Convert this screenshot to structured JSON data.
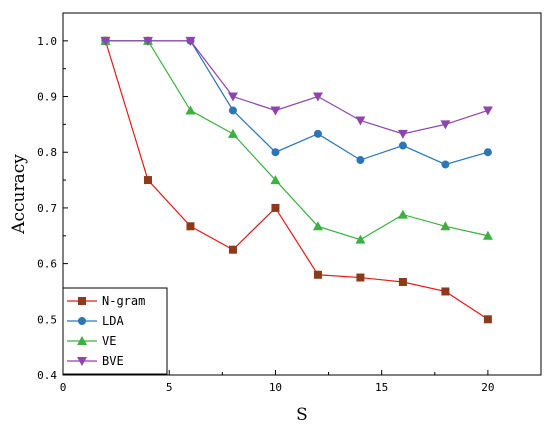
{
  "chart_data": {
    "type": "line",
    "xlabel": "S",
    "ylabel": "Accuracy",
    "xlim": [
      0,
      22.5
    ],
    "ylim": [
      0.4,
      1.05
    ],
    "x_ticks": [
      0,
      5,
      10,
      15,
      20
    ],
    "y_ticks": [
      0.4,
      0.5,
      0.6,
      0.7,
      0.8,
      0.9,
      1.0
    ],
    "x_tick_labels": [
      "0",
      "5",
      "10",
      "15",
      "20"
    ],
    "y_tick_labels": [
      "0.4",
      "0.5",
      "0.6",
      "0.7",
      "0.8",
      "0.9",
      "1.0"
    ],
    "grid": false,
    "legend_position": "bottom-left",
    "series": [
      {
        "name": "N-gram",
        "color": "#8B3A1A",
        "line_color": "#E41A1C",
        "marker": "square",
        "x": [
          2,
          4,
          6,
          8,
          10,
          12,
          14,
          16,
          18,
          20
        ],
        "y": [
          1.0,
          0.75,
          0.667,
          0.625,
          0.7,
          0.58,
          0.575,
          0.567,
          0.55,
          0.5
        ]
      },
      {
        "name": "LDA",
        "color": "#2E75B6",
        "line_color": "#2E75B6",
        "marker": "circle",
        "x": [
          2,
          4,
          6,
          8,
          10,
          12,
          14,
          16,
          18,
          20
        ],
        "y": [
          1.0,
          1.0,
          1.0,
          0.875,
          0.8,
          0.833,
          0.786,
          0.812,
          0.778,
          0.8
        ]
      },
      {
        "name": "VE",
        "color": "#3CB043",
        "line_color": "#3CB043",
        "marker": "triangle-up",
        "x": [
          2,
          4,
          6,
          8,
          10,
          12,
          14,
          16,
          18,
          20
        ],
        "y": [
          1.0,
          1.0,
          0.875,
          0.833,
          0.75,
          0.667,
          0.643,
          0.688,
          0.667,
          0.65
        ]
      },
      {
        "name": "BVE",
        "color": "#8E44AD",
        "line_color": "#8E44AD",
        "marker": "triangle-down",
        "x": [
          2,
          4,
          6,
          8,
          10,
          12,
          14,
          16,
          18,
          20
        ],
        "y": [
          1.0,
          1.0,
          1.0,
          0.9,
          0.875,
          0.9,
          0.857,
          0.833,
          0.85,
          0.875
        ]
      }
    ]
  }
}
